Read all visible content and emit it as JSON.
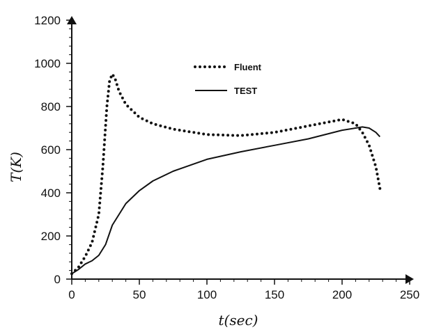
{
  "chart_data": {
    "type": "line",
    "title": "",
    "xlabel": "t(sec)",
    "ylabel": "T(K)",
    "xlim": [
      0,
      250
    ],
    "ylim": [
      0,
      1200
    ],
    "x_ticks": [
      0,
      50,
      100,
      150,
      200,
      250
    ],
    "y_ticks": [
      0,
      200,
      400,
      600,
      800,
      1000,
      1200
    ],
    "grid": false,
    "legend_position": "top-center",
    "series": [
      {
        "name": "Fluent",
        "style": "dotted",
        "color": "#111111",
        "x": [
          0,
          5,
          10,
          15,
          20,
          23,
          26,
          28,
          30,
          32,
          35,
          40,
          50,
          60,
          75,
          100,
          125,
          150,
          175,
          200,
          210,
          215,
          220,
          225,
          228
        ],
        "y": [
          25,
          55,
          105,
          170,
          300,
          520,
          800,
          920,
          950,
          930,
          870,
          810,
          750,
          720,
          695,
          670,
          665,
          680,
          710,
          740,
          720,
          680,
          620,
          520,
          420
        ]
      },
      {
        "name": "TEST",
        "style": "solid",
        "color": "#111111",
        "x": [
          0,
          5,
          10,
          15,
          20,
          25,
          30,
          40,
          50,
          60,
          75,
          100,
          125,
          150,
          175,
          200,
          210,
          215,
          220,
          225,
          228
        ],
        "y": [
          25,
          45,
          70,
          85,
          110,
          160,
          250,
          350,
          410,
          455,
          500,
          555,
          590,
          620,
          650,
          690,
          700,
          705,
          700,
          680,
          660
        ]
      }
    ]
  }
}
